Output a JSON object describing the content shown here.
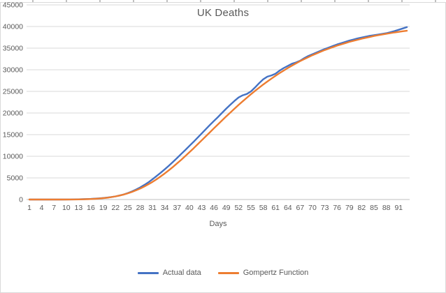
{
  "title": "UK Deaths",
  "axis": {
    "x_title": "Days"
  },
  "legend": {
    "position": "bottom"
  },
  "colors": {
    "actual_line": "#4472C4",
    "gompertz_line": "#ED7D31",
    "gridline": "#D9D9D9",
    "axis_line": "#BFBFBF",
    "text": "#595959",
    "chart_border": "#D9D9D9"
  },
  "chart_data": {
    "type": "line",
    "title": "UK Deaths",
    "xlabel": "Days",
    "ylabel": "",
    "grid": true,
    "legend_position": "bottom",
    "ylim": [
      0,
      45000
    ],
    "y_ticks": [
      0,
      5000,
      10000,
      15000,
      20000,
      25000,
      30000,
      35000,
      40000,
      45000
    ],
    "x_ticks": [
      1,
      4,
      7,
      10,
      13,
      16,
      19,
      22,
      25,
      28,
      31,
      34,
      37,
      40,
      43,
      46,
      49,
      52,
      55,
      58,
      61,
      64,
      67,
      70,
      73,
      76,
      79,
      82,
      85,
      88,
      91
    ],
    "x": [
      1,
      2,
      3,
      4,
      5,
      6,
      7,
      8,
      9,
      10,
      11,
      12,
      13,
      14,
      15,
      16,
      17,
      18,
      19,
      20,
      21,
      22,
      23,
      24,
      25,
      26,
      27,
      28,
      29,
      30,
      31,
      32,
      33,
      34,
      35,
      36,
      37,
      38,
      39,
      40,
      41,
      42,
      43,
      44,
      45,
      46,
      47,
      48,
      49,
      50,
      51,
      52,
      53,
      54,
      55,
      56,
      57,
      58,
      59,
      60,
      61,
      62,
      63,
      64,
      65,
      66,
      67,
      68,
      69,
      70,
      71,
      72,
      73,
      74,
      75,
      76,
      77,
      78,
      79,
      80,
      81,
      82,
      83,
      84,
      85,
      86,
      87,
      88,
      89,
      90,
      91,
      92,
      93
    ],
    "series": [
      {
        "name": "Actual data",
        "color": "#4472C4",
        "values": [
          0,
          0,
          0,
          0,
          0,
          1,
          2,
          4,
          7,
          12,
          20,
          32,
          50,
          75,
          108,
          150,
          205,
          270,
          350,
          450,
          575,
          730,
          930,
          1160,
          1490,
          1860,
          2300,
          2790,
          3350,
          3960,
          4670,
          5430,
          6180,
          6980,
          7820,
          8690,
          9600,
          10530,
          11440,
          12380,
          13330,
          14300,
          15280,
          16260,
          17245,
          18180,
          19100,
          20075,
          21040,
          21930,
          22810,
          23600,
          24100,
          24400,
          25000,
          25900,
          26900,
          27800,
          28400,
          28700,
          29100,
          29800,
          30400,
          30900,
          31400,
          31700,
          32100,
          32700,
          33200,
          33600,
          34000,
          34400,
          34800,
          35150,
          35500,
          35850,
          36150,
          36450,
          36750,
          37000,
          37250,
          37450,
          37650,
          37850,
          38000,
          38150,
          38300,
          38450,
          38700,
          38950,
          39250,
          39550,
          39850
        ]
      },
      {
        "name": "Gompertz Function",
        "color": "#ED7D31",
        "values": [
          0,
          0,
          0,
          0,
          0,
          0,
          1,
          2,
          4,
          8,
          14,
          23,
          36,
          55,
          82,
          118,
          167,
          233,
          318,
          426,
          562,
          726,
          927,
          1164,
          1439,
          1760,
          2125,
          2538,
          3000,
          3510,
          4071,
          4680,
          5333,
          6031,
          6768,
          7540,
          8348,
          9180,
          10040,
          10931,
          11830,
          12750,
          13682,
          14610,
          15545,
          16482,
          17405,
          18325,
          19241,
          20130,
          21010,
          21878,
          22710,
          23530,
          24338,
          25105,
          25855,
          26593,
          27280,
          27955,
          28618,
          29230,
          29830,
          30418,
          30955,
          31485,
          32001,
          32470,
          32925,
          33374,
          33780,
          34175,
          34559,
          34905,
          35245,
          35576,
          35875,
          36165,
          36445,
          36695,
          36940,
          37179,
          37390,
          37600,
          37802,
          37980,
          38155,
          38327,
          38475,
          38625,
          38766,
          38900,
          39024
        ]
      }
    ]
  }
}
